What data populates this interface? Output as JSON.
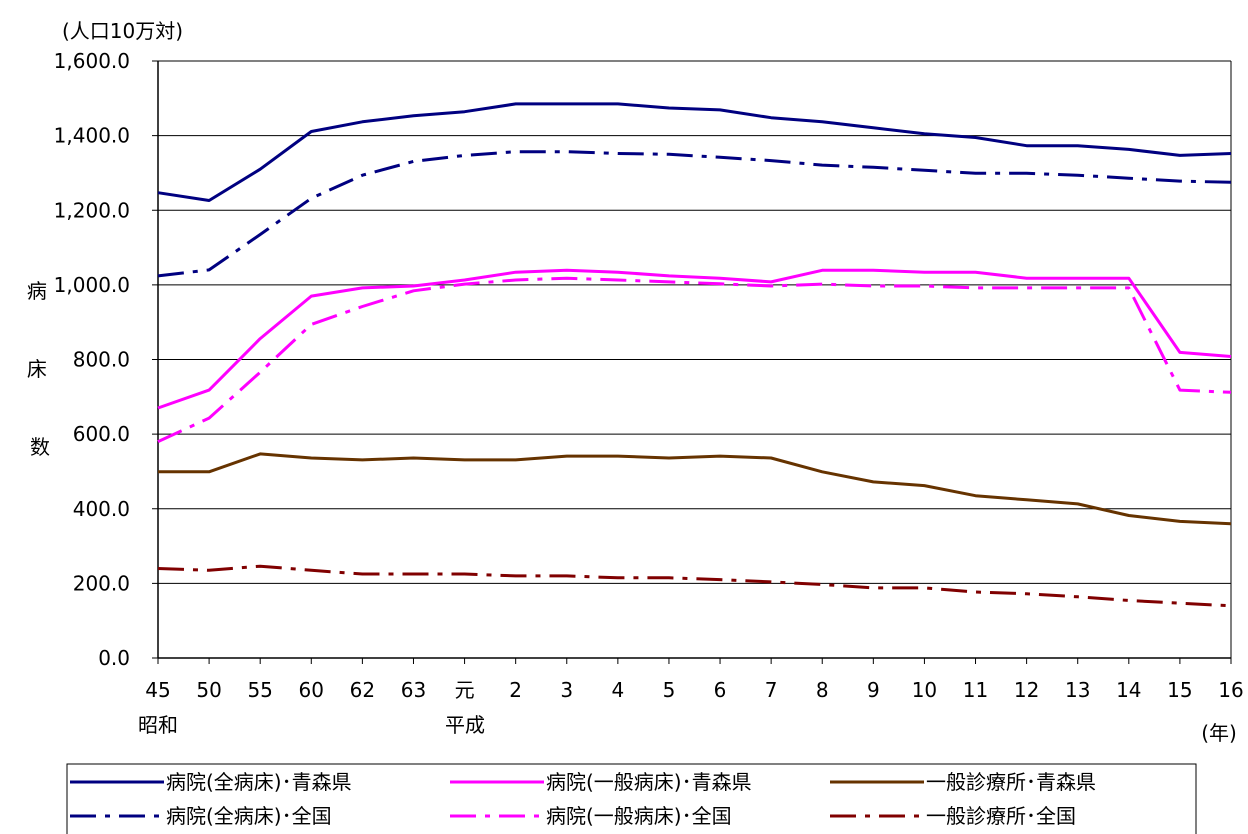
{
  "chart_data": {
    "type": "line",
    "y_unit_label": "(人口10万対)",
    "ylabel": "病床数",
    "x_unit_label": "(年)",
    "era_labels": [
      "昭和",
      "平成"
    ],
    "categories": [
      "45",
      "50",
      "55",
      "60",
      "62",
      "63",
      "元",
      "2",
      "3",
      "4",
      "5",
      "6",
      "7",
      "8",
      "9",
      "10",
      "11",
      "12",
      "13",
      "14",
      "15",
      "16"
    ],
    "y_ticks": [
      "0.0",
      "200.0",
      "400.0",
      "600.0",
      "800.0",
      "1,000.0",
      "1,200.0",
      "1,400.0",
      "1,600.0"
    ],
    "ylim": [
      0,
      1600
    ],
    "grid": "horizontal",
    "legend_position": "bottom",
    "series": [
      {
        "name": "病院(全病床)･青森県",
        "color": "#000080",
        "dash": "solid",
        "values": [
          1247,
          1226,
          1310,
          1411,
          1437,
          1453,
          1464,
          1485,
          1485,
          1485,
          1474,
          1469,
          1448,
          1437,
          1421,
          1405,
          1395,
          1373,
          1373,
          1363,
          1347,
          1352
        ]
      },
      {
        "name": "病院(全病床)･全国",
        "color": "#000080",
        "dash": "dashdot",
        "values": [
          1024,
          1040,
          1135,
          1232,
          1294,
          1331,
          1347,
          1357,
          1357,
          1352,
          1350,
          1342,
          1333,
          1321,
          1315,
          1307,
          1299,
          1299,
          1294,
          1286,
          1278,
          1275
        ]
      },
      {
        "name": "病院(一般病床)･青森県",
        "color": "#ff00ff",
        "dash": "solid",
        "values": [
          670,
          718,
          856,
          970,
          992,
          997,
          1013,
          1034,
          1039,
          1034,
          1024,
          1018,
          1008,
          1039,
          1039,
          1034,
          1034,
          1018,
          1018,
          1018,
          819,
          808
        ]
      },
      {
        "name": "病院(一般病床)･全国",
        "color": "#ff00ff",
        "dash": "dashdot",
        "values": [
          580,
          643,
          766,
          894,
          942,
          984,
          1002,
          1013,
          1018,
          1013,
          1008,
          1003,
          997,
          1002,
          997,
          997,
          992,
          992,
          992,
          992,
          718,
          712
        ]
      },
      {
        "name": "一般診療所･青森県",
        "color": "#663300",
        "dash": "solid",
        "values": [
          499,
          499,
          547,
          536,
          531,
          536,
          531,
          531,
          541,
          541,
          536,
          541,
          536,
          499,
          472,
          462,
          435,
          424,
          413,
          382,
          366,
          360
        ]
      },
      {
        "name": "一般診療所･全国",
        "color": "#800000",
        "dash": "dashdot",
        "values": [
          240,
          235,
          246,
          235,
          225,
          225,
          225,
          220,
          220,
          215,
          215,
          210,
          204,
          197,
          188,
          188,
          177,
          172,
          164,
          154,
          147,
          140
        ]
      }
    ]
  }
}
